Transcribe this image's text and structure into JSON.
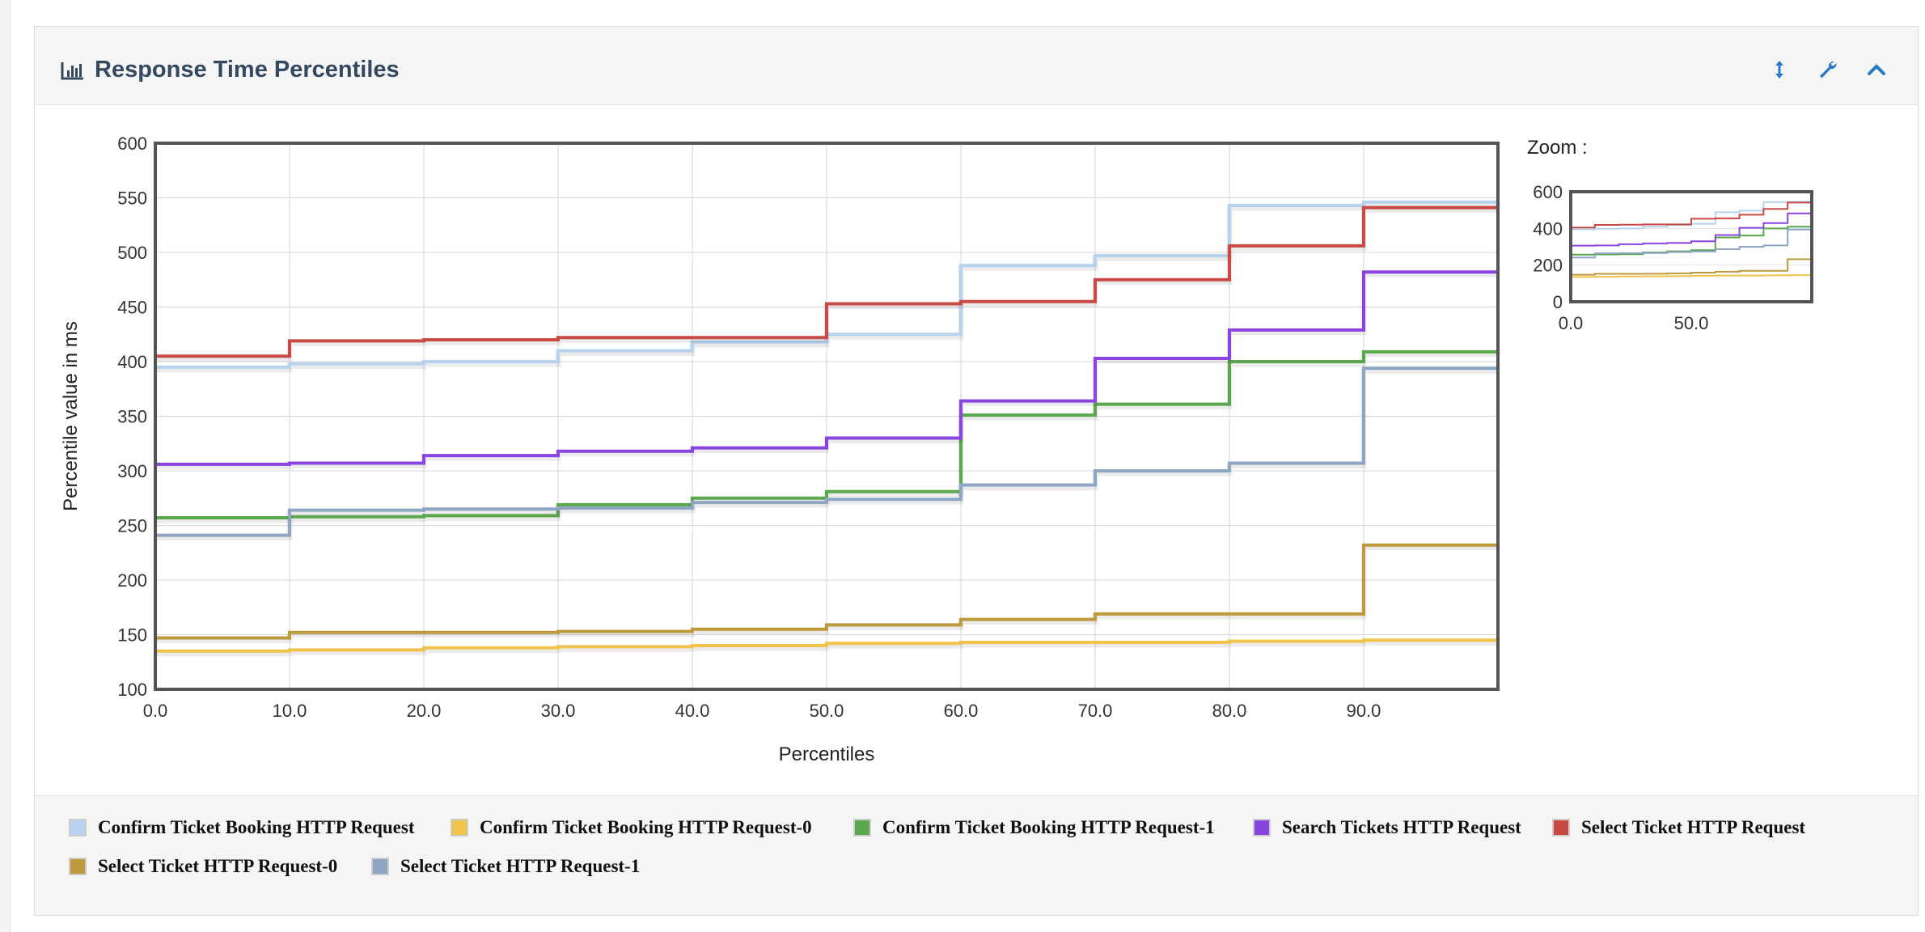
{
  "panel": {
    "title": "Response Time Percentiles",
    "title_icon": "bar-chart-icon",
    "tools": [
      "resize-vertical-icon",
      "wrench-icon",
      "chevron-up-icon"
    ]
  },
  "zoom_label": "Zoom :",
  "chart_data": {
    "type": "line",
    "step": true,
    "xlabel": "Percentiles",
    "ylabel": "Percentile value in ms",
    "xlim": [
      0,
      100
    ],
    "ylim": [
      100,
      600
    ],
    "xticks": [
      0,
      10,
      20,
      30,
      40,
      50,
      60,
      70,
      80,
      90
    ],
    "yticks": [
      100,
      150,
      200,
      250,
      300,
      350,
      400,
      450,
      500,
      550,
      600
    ],
    "grid": true,
    "legend_position": "bottom",
    "x": [
      0,
      10,
      20,
      30,
      40,
      50,
      60,
      70,
      80,
      90
    ],
    "series": [
      {
        "name": "Confirm Ticket Booking HTTP Request",
        "color": "#b5d3ee",
        "values": [
          395,
          398,
          400,
          410,
          418,
          425,
          488,
          497,
          543,
          546
        ]
      },
      {
        "name": "Confirm Ticket Booking HTTP Request-0",
        "color": "#f0c44c",
        "values": [
          135,
          136,
          138,
          139,
          140,
          142,
          143,
          143,
          144,
          145
        ]
      },
      {
        "name": "Confirm Ticket Booking HTTP Request-1",
        "color": "#5aa74e",
        "values": [
          257,
          258,
          259,
          269,
          275,
          281,
          351,
          361,
          400,
          409
        ]
      },
      {
        "name": "Search Tickets HTTP Request",
        "color": "#8a44e0",
        "values": [
          306,
          307,
          314,
          318,
          321,
          330,
          364,
          403,
          429,
          482
        ]
      },
      {
        "name": "Select Ticket HTTP Request",
        "color": "#c94a45",
        "values": [
          405,
          419,
          420,
          422,
          422,
          453,
          455,
          475,
          506,
          541
        ]
      },
      {
        "name": "Select Ticket HTTP Request-0",
        "color": "#bd9a3c",
        "values": [
          147,
          152,
          152,
          153,
          155,
          159,
          164,
          169,
          169,
          232
        ]
      },
      {
        "name": "Select Ticket HTTP Request-1",
        "color": "#8ea6c4",
        "values": [
          241,
          264,
          265,
          266,
          271,
          274,
          287,
          300,
          307,
          394
        ]
      }
    ],
    "zoom": {
      "ylim": [
        0,
        600
      ],
      "xlim": [
        0,
        100
      ],
      "yticks": [
        0,
        200,
        400,
        600
      ],
      "xticks": [
        0,
        50
      ]
    }
  }
}
